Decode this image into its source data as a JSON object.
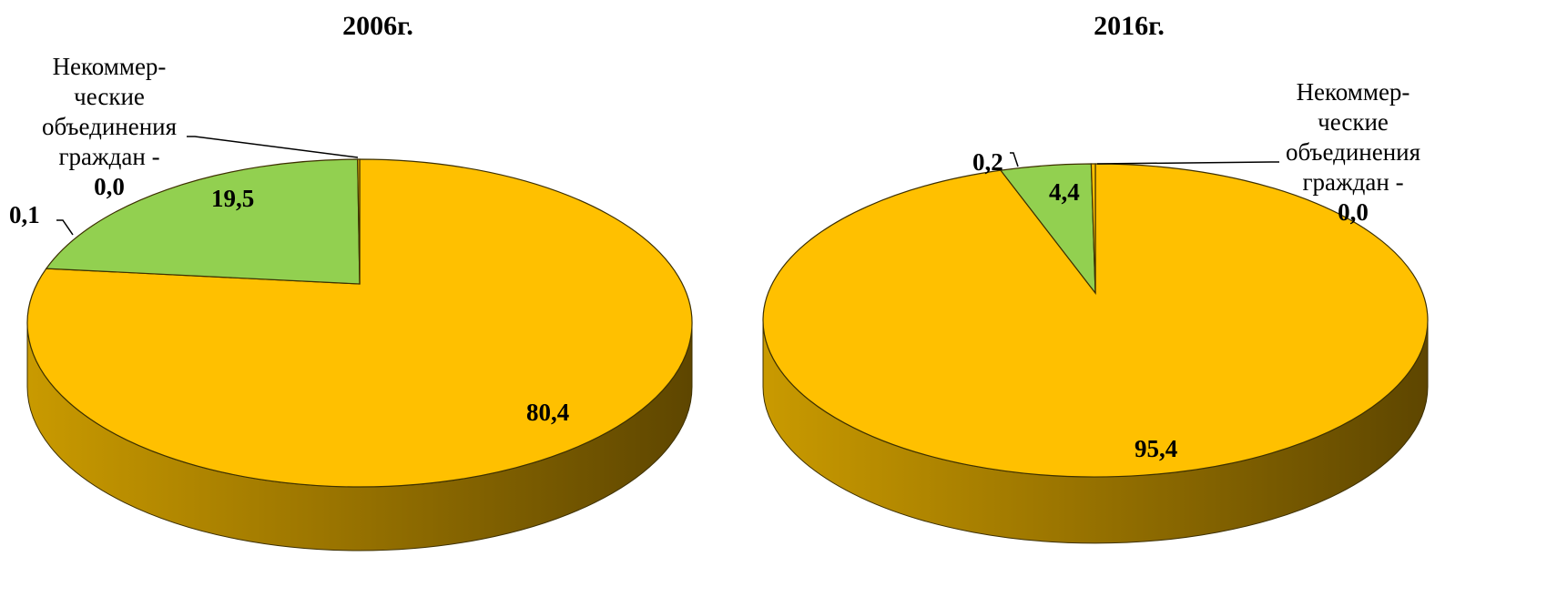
{
  "chart_data": [
    {
      "type": "pie",
      "title": "2006г.",
      "slices": [
        {
          "value": 80.4,
          "label": "80,4",
          "color": "#FFC000"
        },
        {
          "value": 19.5,
          "label": "19,5",
          "color": "#92D050"
        },
        {
          "value": 0.1,
          "label": "0,1",
          "color": "#FFC000"
        },
        {
          "value": 0.0,
          "label": "0,0",
          "color": "#92D050"
        }
      ],
      "annotation": {
        "lines": [
          "Некоммер-",
          "ческие",
          "объединения",
          "граждан -"
        ],
        "value": "0,0"
      }
    },
    {
      "type": "pie",
      "title": "2016г.",
      "slices": [
        {
          "value": 95.4,
          "label": "95,4",
          "color": "#FFC000"
        },
        {
          "value": 4.4,
          "label": "4,4",
          "color": "#92D050"
        },
        {
          "value": 0.2,
          "label": "0,2",
          "color": "#FFC000"
        },
        {
          "value": 0.0,
          "label": "0,0",
          "color": "#92D050"
        }
      ],
      "annotation": {
        "lines": [
          "Некоммер-",
          "ческие",
          "объединения",
          "граждан -"
        ],
        "value": "0,0"
      }
    }
  ]
}
